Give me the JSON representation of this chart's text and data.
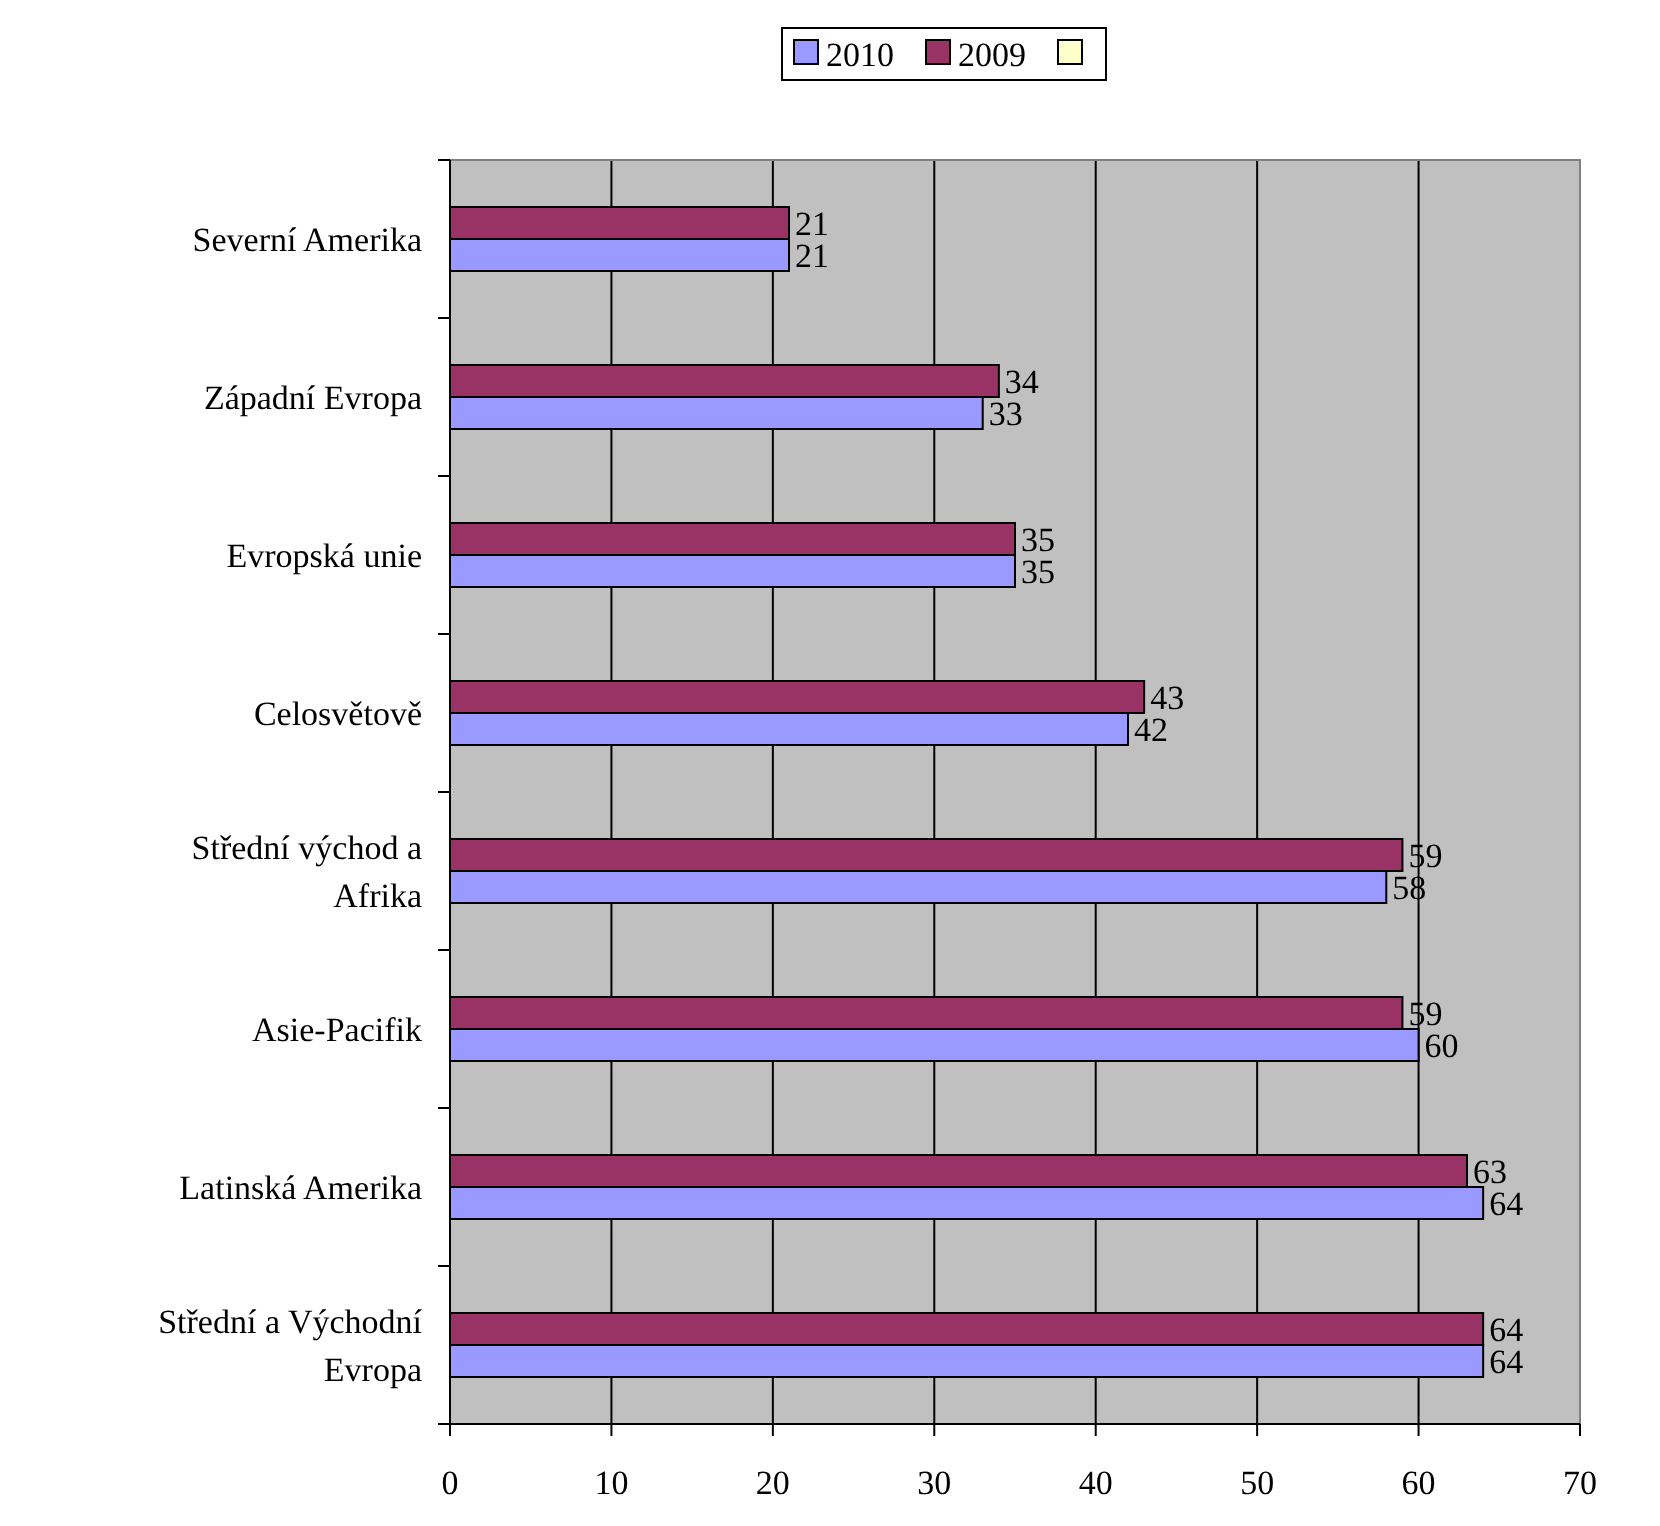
{
  "chart_data": {
    "type": "bar",
    "orientation": "horizontal",
    "categories": [
      "Severní Amerika",
      "Západní Evropa",
      "Evropská unie",
      "Celosvětově",
      "Střední východ a Afrika",
      "Asie-Pacifik",
      "Latinská Amerika",
      "Střední a Východní Evropa"
    ],
    "series": [
      {
        "name": "2010",
        "color": "#9999ff",
        "values": [
          21,
          33,
          35,
          42,
          58,
          60,
          64,
          64
        ]
      },
      {
        "name": "2009",
        "color": "#993366",
        "values": [
          21,
          34,
          35,
          43,
          59,
          59,
          63,
          64
        ]
      },
      {
        "color": "#ffffcc",
        "values": [
          null,
          null,
          null,
          null,
          null,
          null,
          null,
          null
        ]
      }
    ],
    "xlim": [
      0,
      70
    ],
    "xticks": [
      0,
      10,
      20,
      30,
      40,
      50,
      60,
      70
    ],
    "grid": "x",
    "data_labels": true,
    "legend": "top"
  }
}
